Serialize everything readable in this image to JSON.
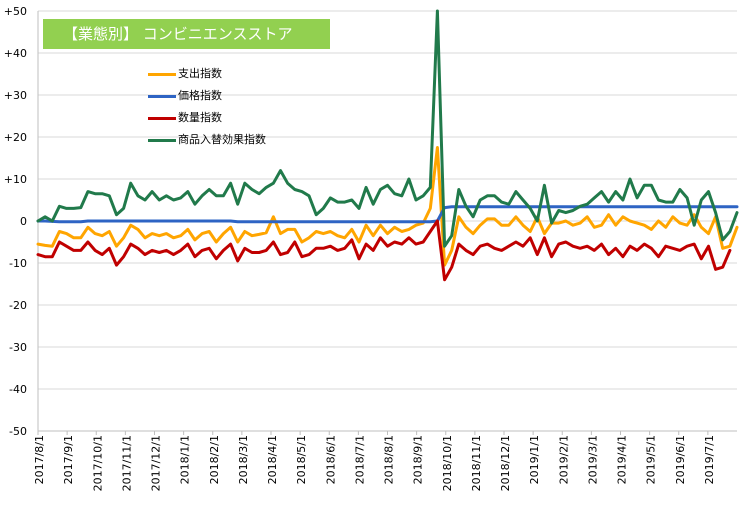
{
  "chart_data": {
    "type": "line",
    "title": "【業態別】 コンビニエンスストア",
    "title_color": "#92d050",
    "ylim": [
      -50,
      50
    ],
    "yticks": [
      {
        "value": 50,
        "label": "+50"
      },
      {
        "value": 40,
        "label": "+40"
      },
      {
        "value": 30,
        "label": "+30"
      },
      {
        "value": 20,
        "label": "+20"
      },
      {
        "value": 10,
        "label": "+10"
      },
      {
        "value": 0,
        "label": "0"
      },
      {
        "value": -10,
        "label": "-10"
      },
      {
        "value": -20,
        "label": "-20"
      },
      {
        "value": -30,
        "label": "-30"
      },
      {
        "value": -40,
        "label": "-40"
      },
      {
        "value": -50,
        "label": "-50"
      }
    ],
    "xticks": [
      "2017/8/1",
      "2017/9/1",
      "2017/10/1",
      "2017/11/1",
      "2017/12/1",
      "2018/1/1",
      "2018/2/1",
      "2018/3/1",
      "2018/4/1",
      "2018/5/1",
      "2018/6/1",
      "2018/7/1",
      "2018/8/1",
      "2018/9/1",
      "2018/10/1",
      "2018/11/1",
      "2018/12/1",
      "2019/1/1",
      "2019/2/1",
      "2019/3/1",
      "2019/4/1",
      "2019/5/1",
      "2019/6/1",
      "2019/7/1"
    ],
    "grid": true,
    "legend_position": "top-left",
    "series": [
      {
        "name": "支出指数",
        "color": "#ffa500",
        "values": [
          -5.5,
          -5.8,
          -6,
          -2.5,
          -3,
          -4,
          -4,
          -1.5,
          -3,
          -3.5,
          -2.5,
          -6,
          -4,
          -1,
          -2,
          -4,
          -3,
          -3.5,
          -3,
          -4,
          -3.5,
          -2,
          -4.5,
          -3,
          -2.5,
          -5,
          -3,
          -1.5,
          -5,
          -2.5,
          -3.5,
          -3.2,
          -2.8,
          1,
          -3,
          -2,
          -2,
          -5,
          -4,
          -2.5,
          -3,
          -2.5,
          -3.5,
          -4,
          -2,
          -5,
          -1,
          -3.5,
          -1,
          -3,
          -1.5,
          -2.5,
          -2,
          -1,
          -0.5,
          3,
          17.5,
          -10.5,
          -7,
          1,
          -1.5,
          -3,
          -1,
          0.5,
          0.5,
          -1,
          -1,
          1,
          -1,
          -2.5,
          1,
          -3,
          -0.5,
          -0.5,
          0,
          -1,
          -0.5,
          1,
          -1.5,
          -1,
          1.5,
          -1,
          1,
          0,
          -0.5,
          -1,
          -2,
          0,
          -1.5,
          1,
          -0.5,
          -1,
          1.5,
          -1.5,
          -3,
          1,
          -6.5,
          -6,
          -1.5
        ]
      },
      {
        "name": "価格指数",
        "color": "#2e64c4",
        "values": [
          0,
          0,
          -0.1,
          -0.2,
          -0.2,
          -0.2,
          -0.2,
          0,
          0,
          0,
          0,
          0,
          0,
          0,
          0,
          0,
          0,
          0,
          0,
          0,
          0,
          0,
          0,
          0,
          0,
          0,
          0,
          0,
          -0.2,
          -0.2,
          -0.2,
          -0.2,
          -0.2,
          -0.2,
          -0.2,
          -0.2,
          -0.2,
          -0.2,
          -0.2,
          -0.2,
          -0.2,
          -0.2,
          -0.2,
          -0.2,
          -0.2,
          -0.2,
          -0.2,
          -0.2,
          -0.2,
          -0.2,
          -0.2,
          -0.2,
          -0.2,
          -0.2,
          -0.2,
          -0.2,
          0,
          3.2,
          3.4,
          3.4,
          3.4,
          3.4,
          3.4,
          3.4,
          3.4,
          3.4,
          3.4,
          3.4,
          3.4,
          3.4,
          3.4,
          3.4,
          3.4,
          3.4,
          3.4,
          3.4,
          3.4,
          3.4,
          3.4,
          3.4,
          3.4,
          3.4,
          3.4,
          3.4,
          3.4,
          3.4,
          3.4,
          3.4,
          3.4,
          3.4,
          3.4,
          3.4,
          3.4,
          3.4,
          3.4,
          3.4,
          3.4,
          3.4,
          3.4
        ]
      },
      {
        "name": "数量指数",
        "color": "#c00000",
        "values": [
          -8,
          -8.5,
          -8.5,
          -5,
          -6,
          -7,
          -7,
          -5,
          -7,
          -8,
          -6.5,
          -10.5,
          -8.5,
          -5.5,
          -6.5,
          -8,
          -7,
          -7.5,
          -7,
          -8,
          -7,
          -5.5,
          -8.5,
          -7,
          -6.5,
          -9,
          -7,
          -5.5,
          -9.5,
          -6.5,
          -7.5,
          -7.5,
          -7,
          -5,
          -8,
          -7.5,
          -5,
          -8.5,
          -8,
          -6.5,
          -6.5,
          -6,
          -7,
          -6.5,
          -4.5,
          -9,
          -5.5,
          -7,
          -4,
          -6,
          -5,
          -5.5,
          -4,
          -5.5,
          -5,
          -2.5,
          0,
          -14,
          -11,
          -5.5,
          -7,
          -8,
          -6,
          -5.5,
          -6.5,
          -7,
          -6,
          -5,
          -6,
          -4,
          -8,
          -4,
          -8.5,
          -5.5,
          -5,
          -6,
          -6.5,
          -6,
          -7,
          -5.5,
          -8,
          -6.5,
          -8.5,
          -6,
          -7,
          -5.5,
          -6.5,
          -8.5,
          -6,
          -6.5,
          -7,
          -6,
          -5.5,
          -9,
          -6,
          -11.5,
          -11,
          -7
        ]
      },
      {
        "name": "商品入替効果指数",
        "color": "#217a4b",
        "values": [
          0,
          1,
          0,
          3.5,
          3,
          3,
          3.2,
          7,
          6.5,
          6.5,
          6,
          1.5,
          3,
          9,
          6,
          5,
          7,
          5,
          6,
          5,
          5.5,
          7,
          4,
          6,
          7.5,
          6,
          6,
          9,
          4,
          9,
          7.5,
          6.5,
          8,
          9,
          12,
          9,
          7.5,
          7,
          6,
          1.5,
          3,
          5.5,
          4.5,
          4.5,
          5,
          3,
          8,
          4,
          7.5,
          8.5,
          6.5,
          6,
          10,
          5,
          6,
          8,
          50,
          -6,
          -3.5,
          7.5,
          3.5,
          1,
          5,
          6,
          6,
          4.5,
          4,
          7,
          5,
          3,
          0,
          8.5,
          -0.5,
          2.5,
          2,
          2.5,
          3.5,
          4,
          5.5,
          7,
          4.5,
          7,
          5,
          10,
          5.5,
          8.5,
          8.5,
          5,
          4.5,
          4.5,
          7.5,
          5.5,
          -1,
          5,
          7,
          2,
          -4.5,
          -2.5,
          2
        ]
      }
    ]
  }
}
